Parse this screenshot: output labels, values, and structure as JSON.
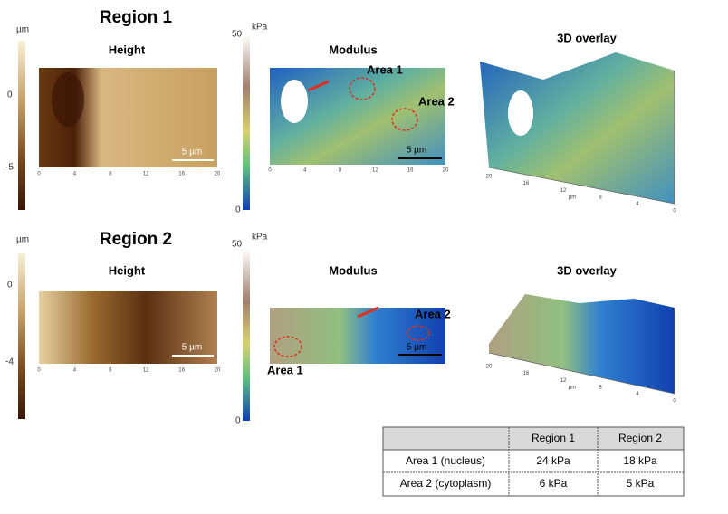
{
  "regions": [
    {
      "title": "Region 1",
      "height": {
        "title": "Height",
        "unit": "µm",
        "ticks": [
          "0",
          "-5"
        ],
        "scale_bar": "5 µm",
        "axis_ticks": [
          "0",
          "4",
          "8",
          "12",
          "16",
          "20"
        ]
      },
      "modulus": {
        "title": "Modulus",
        "unit": "kPa",
        "ticks": [
          "50",
          "0"
        ],
        "scale_bar": "5 µm",
        "areas": [
          "Area 1",
          "Area 2"
        ]
      },
      "overlay": {
        "title": "3D overlay",
        "axis_label": "µm",
        "axis_ticks": [
          "20",
          "16",
          "12",
          "8",
          "4",
          "0"
        ]
      }
    },
    {
      "title": "Region 2",
      "height": {
        "title": "Height",
        "unit": "µm",
        "ticks": [
          "0",
          "-4"
        ],
        "scale_bar": "5 µm",
        "axis_ticks": [
          "0",
          "4",
          "8",
          "12",
          "16",
          "20"
        ]
      },
      "modulus": {
        "title": "Modulus",
        "unit": "kPa",
        "ticks": [
          "50",
          "0"
        ],
        "scale_bar": "5 µm",
        "areas": [
          "Area 1",
          "Area 2"
        ]
      },
      "overlay": {
        "title": "3D overlay",
        "axis_label": "µm",
        "axis_ticks": [
          "20",
          "16",
          "12",
          "8",
          "4",
          "0"
        ]
      }
    }
  ],
  "table": {
    "columns": [
      "Region 1",
      "Region 2"
    ],
    "rows": [
      {
        "label": "Area 1 (nucleus)",
        "values": [
          "24 kPa",
          "18 kPa"
        ]
      },
      {
        "label": "Area 2 (cytoplasm)",
        "values": [
          "6 kPa",
          "5 kPa"
        ]
      }
    ]
  }
}
